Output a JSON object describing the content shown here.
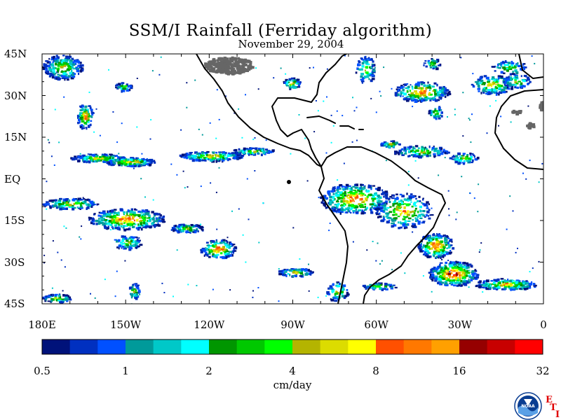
{
  "title": "SSM/I Rainfall (Ferriday algorithm)",
  "subtitle": "November 29, 2004",
  "map": {
    "lon_range": [
      -180,
      0
    ],
    "lat_range": [
      -45,
      45
    ],
    "lat_labels": [
      "45N",
      "30N",
      "15N",
      "EQ",
      "15S",
      "30S",
      "45S"
    ],
    "lat_values": [
      45,
      30,
      15,
      0,
      -15,
      -30,
      -45
    ],
    "lon_labels": [
      "180E",
      "150W",
      "120W",
      "90W",
      "60W",
      "30W",
      "0"
    ],
    "lon_values": [
      -180,
      -150,
      -120,
      -90,
      -60,
      -30,
      0
    ],
    "no_data_color": "#666666",
    "coastline_color": "#000000"
  },
  "colorbar": {
    "colors": [
      "#00127a",
      "#0030c0",
      "#0050ff",
      "#009a9a",
      "#00c8c8",
      "#00ffff",
      "#009600",
      "#00c800",
      "#00ff00",
      "#b4b400",
      "#dcdc00",
      "#ffff00",
      "#ff5000",
      "#ff7800",
      "#ffa000",
      "#960000",
      "#c80000",
      "#ff0000"
    ],
    "tick_labels": [
      "0.5",
      "1",
      "2",
      "4",
      "8",
      "16",
      "32"
    ],
    "units": "cm/day"
  },
  "logo": {
    "icon": "noaa-logo-icon",
    "text": "NOAA",
    "letters": [
      "E",
      "T",
      "I"
    ],
    "accent": "#e00000"
  }
}
